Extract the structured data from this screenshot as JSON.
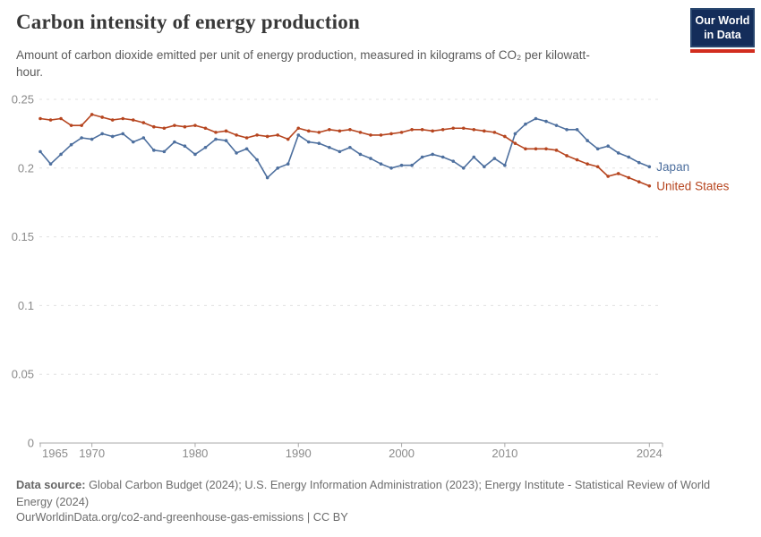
{
  "header": {
    "title": "Carbon intensity of energy production",
    "subtitle": "Amount of carbon dioxide emitted per unit of energy production, measured in kilograms of CO₂ per kilowatt-hour.",
    "logo": {
      "line1": "Our World",
      "line2": "in Data"
    }
  },
  "chart_data": {
    "type": "line",
    "title": "Carbon intensity of energy production",
    "ylabel": "kilograms of CO₂ per kilowatt-hour",
    "ylim": [
      0,
      0.25
    ],
    "yticks": [
      0,
      0.05,
      0.1,
      0.15,
      0.2,
      0.25
    ],
    "xticks": [
      1965,
      1970,
      1980,
      1990,
      2000,
      2010,
      2024
    ],
    "grid": true,
    "legend_position": "line-end-labels",
    "x": [
      1965,
      1966,
      1967,
      1968,
      1969,
      1970,
      1971,
      1972,
      1973,
      1974,
      1975,
      1976,
      1977,
      1978,
      1979,
      1980,
      1981,
      1982,
      1983,
      1984,
      1985,
      1986,
      1987,
      1988,
      1989,
      1990,
      1991,
      1992,
      1993,
      1994,
      1995,
      1996,
      1997,
      1998,
      1999,
      2000,
      2001,
      2002,
      2003,
      2004,
      2005,
      2006,
      2007,
      2008,
      2009,
      2010,
      2011,
      2012,
      2013,
      2014,
      2015,
      2016,
      2017,
      2018,
      2019,
      2020,
      2021,
      2022,
      2023,
      2024
    ],
    "series": [
      {
        "name": "Japan",
        "color": "#4D6F9E",
        "values": [
          0.212,
          0.203,
          0.21,
          0.217,
          0.222,
          0.221,
          0.225,
          0.223,
          0.225,
          0.219,
          0.222,
          0.213,
          0.212,
          0.219,
          0.216,
          0.21,
          0.215,
          0.221,
          0.22,
          0.211,
          0.214,
          0.206,
          0.193,
          0.2,
          0.203,
          0.224,
          0.219,
          0.218,
          0.215,
          0.212,
          0.215,
          0.21,
          0.207,
          0.203,
          0.2,
          0.202,
          0.202,
          0.208,
          0.21,
          0.208,
          0.205,
          0.2,
          0.208,
          0.201,
          0.207,
          0.202,
          0.225,
          0.232,
          0.236,
          0.234,
          0.231,
          0.228,
          0.228,
          0.22,
          0.214,
          0.216,
          0.211,
          0.208,
          0.204,
          0.201
        ]
      },
      {
        "name": "United States",
        "color": "#B6451F",
        "values": [
          0.236,
          0.235,
          0.236,
          0.231,
          0.231,
          0.239,
          0.237,
          0.235,
          0.236,
          0.235,
          0.233,
          0.23,
          0.229,
          0.231,
          0.23,
          0.231,
          0.229,
          0.226,
          0.227,
          0.224,
          0.222,
          0.224,
          0.223,
          0.224,
          0.221,
          0.229,
          0.227,
          0.226,
          0.228,
          0.227,
          0.228,
          0.226,
          0.224,
          0.224,
          0.225,
          0.226,
          0.228,
          0.228,
          0.227,
          0.228,
          0.229,
          0.229,
          0.228,
          0.227,
          0.226,
          0.223,
          0.218,
          0.214,
          0.214,
          0.214,
          0.213,
          0.209,
          0.206,
          0.203,
          0.201,
          0.194,
          0.196,
          0.193,
          0.19,
          0.187
        ]
      }
    ]
  },
  "footer": {
    "source_label": "Data source:",
    "source_text": "Global Carbon Budget (2024); U.S. Energy Information Administration (2023); Energy Institute - Statistical Review of World Energy (2024)",
    "link_text": "OurWorldinData.org/co2-and-greenhouse-gas-emissions",
    "separator": "|",
    "license": "CC BY"
  }
}
